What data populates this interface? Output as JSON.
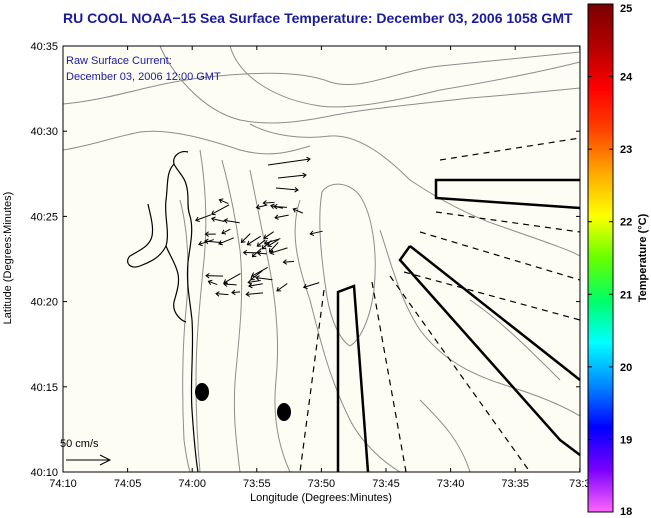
{
  "title": "RU COOL  NOAA−15  Sea Surface Temperature:  December 03, 2006 1058 GMT",
  "current_note": {
    "line1": "Raw Surface Current:",
    "line2": "December 03, 2006 12:00 GMT"
  },
  "axes": {
    "xlabel": "Longitude (Degrees:Minutes)",
    "ylabel": "Latitude (Degrees:Minutes)",
    "x_ticks": [
      "74:10",
      "74:05",
      "74:00",
      "73:55",
      "73:50",
      "73:45",
      "73:40",
      "73:35",
      "73:3"
    ],
    "y_ticks": [
      "40:35",
      "40:30",
      "40:25",
      "40:20",
      "40:15",
      "40:10"
    ],
    "x_range_deg": [
      -74.1667,
      -73.5
    ],
    "y_range_deg": [
      40.1667,
      40.5833
    ]
  },
  "colorbar": {
    "label": "Temperature (°C)",
    "ticks": [
      "25",
      "24",
      "23",
      "22",
      "21",
      "20",
      "19",
      "18"
    ],
    "range": [
      18,
      25
    ],
    "colors": [
      "#ff66ff",
      "#7a00ff",
      "#0000ff",
      "#0088ff",
      "#00ffff",
      "#00ff66",
      "#66ff00",
      "#ffff00",
      "#ffaa00",
      "#ff4400",
      "#ff0000",
      "#b30000",
      "#7a0000"
    ]
  },
  "scale_bar": {
    "label": "50 cm/s"
  },
  "colors": {
    "ocean": "#fdfdf4",
    "contour": "#8c8c8c",
    "coast": "#000000",
    "title": "#1a1a9c"
  }
}
